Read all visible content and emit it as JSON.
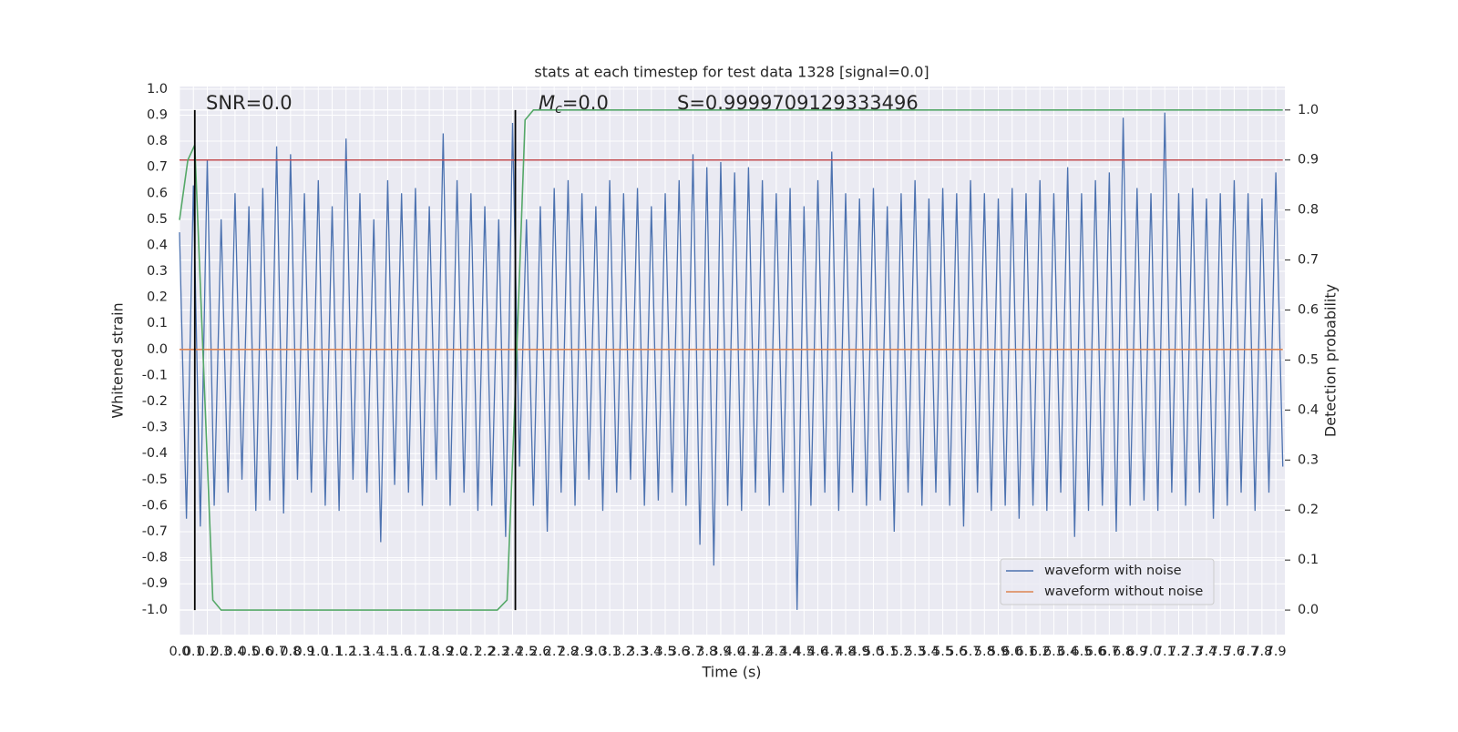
{
  "chart_data": {
    "type": "line",
    "title": "stats at each timestep for test data 1328 [signal=0.0]",
    "xlabel": "Time (s)",
    "ylabel": "Whitened strain",
    "y2label": "Detection probability",
    "xlim": [
      0,
      7.965
    ],
    "ylim": [
      -1.095,
      1.01
    ],
    "y2lim": [
      -0.049,
      1.047
    ],
    "grid": true,
    "legend": "lower right",
    "xticks": [
      {
        "value": 0,
        "label": "0.0"
      },
      0.1,
      0.2,
      0.3,
      0.4,
      0.5,
      0.6,
      0.7,
      0.8,
      0.9,
      {
        "value": 1,
        "label": "1.0"
      },
      1.1,
      1.2,
      1.3,
      1.4,
      1.5,
      1.6,
      1.7,
      1.8,
      1.9,
      {
        "value": 2,
        "label": "2.0"
      },
      2.1,
      2.2,
      2.3,
      2.4,
      2.5,
      2.6,
      2.7,
      2.8,
      2.9,
      {
        "value": 3,
        "label": "3.0"
      },
      3.1,
      3.2,
      3.3,
      3.4,
      3.5,
      3.6,
      3.7,
      3.8,
      3.9,
      {
        "value": 4,
        "label": "4.0"
      },
      4.1,
      4.2,
      4.3,
      4.4,
      4.5,
      4.6,
      4.7,
      4.8,
      4.9,
      {
        "value": 5,
        "label": "5.0"
      },
      5.1,
      5.2,
      5.3,
      5.4,
      5.5,
      5.6,
      5.7,
      5.8,
      5.9,
      {
        "value": 6,
        "label": "6.0"
      },
      6.1,
      6.2,
      6.3,
      6.4,
      6.5,
      6.6,
      6.7,
      6.8,
      6.9,
      {
        "value": 7,
        "label": "7.0"
      },
      7.1,
      7.2,
      7.3,
      7.4,
      7.5,
      7.6,
      7.7,
      7.8,
      7.9
    ],
    "yticks": [
      {
        "value": -1,
        "label": "-1.0"
      },
      -0.9,
      -0.8,
      -0.7,
      -0.6,
      -0.5,
      -0.4,
      -0.3,
      -0.2,
      -0.1,
      {
        "value": 0,
        "label": "0.0"
      },
      0.1,
      0.2,
      0.3,
      0.4,
      0.5,
      0.6,
      0.7,
      0.8,
      0.9,
      {
        "value": 1,
        "label": "1.0"
      }
    ],
    "y2ticks": [
      {
        "value": 0,
        "label": "0.0"
      },
      0.1,
      0.2,
      0.3,
      0.4,
      0.5,
      0.6,
      0.7,
      0.8,
      0.9,
      {
        "value": 1,
        "label": "1.0"
      }
    ],
    "vlines": [
      0.11,
      2.42
    ],
    "vline_color": "#000000",
    "annotations": [
      {
        "text": "SNR=0.0"
      },
      {
        "text": "M",
        "subscript": "c",
        "suffix": "=0.0"
      },
      {
        "text": "S=0.9999709129333496"
      }
    ],
    "series": [
      {
        "name": "waveform with noise",
        "color": "#4c72b0",
        "x": [
          0,
          0.05,
          0.1,
          0.15,
          0.2,
          0.25,
          0.3,
          0.35,
          0.4,
          0.45,
          0.5,
          0.55,
          0.6,
          0.65,
          0.7,
          0.75,
          0.8,
          0.85,
          0.9,
          0.95,
          1,
          1.05,
          1.1,
          1.15,
          1.2,
          1.25,
          1.3,
          1.35,
          1.4,
          1.45,
          1.5,
          1.55,
          1.6,
          1.65,
          1.7,
          1.75,
          1.8,
          1.85,
          1.9,
          1.95,
          2,
          2.05,
          2.1,
          2.15,
          2.2,
          2.25,
          2.3,
          2.35,
          2.4,
          2.45,
          2.5,
          2.55,
          2.6,
          2.65,
          2.7,
          2.75,
          2.8,
          2.85,
          2.9,
          2.95,
          3,
          3.05,
          3.1,
          3.15,
          3.2,
          3.25,
          3.3,
          3.35,
          3.4,
          3.45,
          3.5,
          3.55,
          3.6,
          3.65,
          3.7,
          3.75,
          3.8,
          3.85,
          3.9,
          3.95,
          4,
          4.05,
          4.1,
          4.15,
          4.2,
          4.25,
          4.3,
          4.35,
          4.4,
          4.45,
          4.5,
          4.55,
          4.6,
          4.65,
          4.7,
          4.75,
          4.8,
          4.85,
          4.9,
          4.95,
          5,
          5.05,
          5.1,
          5.15,
          5.2,
          5.25,
          5.3,
          5.35,
          5.4,
          5.45,
          5.5,
          5.55,
          5.6,
          5.65,
          5.7,
          5.75,
          5.8,
          5.85,
          5.9,
          5.95,
          6,
          6.05,
          6.1,
          6.15,
          6.2,
          6.25,
          6.3,
          6.35,
          6.4,
          6.45,
          6.5,
          6.55,
          6.6,
          6.65,
          6.7,
          6.75,
          6.8,
          6.85,
          6.9,
          6.95,
          7,
          7.05,
          7.1,
          7.15,
          7.2,
          7.25,
          7.3,
          7.35,
          7.4,
          7.45,
          7.5,
          7.55,
          7.6,
          7.65,
          7.7,
          7.75,
          7.8,
          7.85,
          7.9,
          7.95
        ],
        "values": [
          0.45,
          -0.65,
          0.63,
          -0.68,
          0.73,
          -0.6,
          0.5,
          -0.55,
          0.6,
          -0.5,
          0.55,
          -0.62,
          0.62,
          -0.58,
          0.78,
          -0.63,
          0.75,
          -0.5,
          0.6,
          -0.55,
          0.65,
          -0.6,
          0.55,
          -0.62,
          0.81,
          -0.5,
          0.6,
          -0.55,
          0.5,
          -0.74,
          0.65,
          -0.52,
          0.6,
          -0.55,
          0.62,
          -0.6,
          0.55,
          -0.5,
          0.83,
          -0.6,
          0.65,
          -0.55,
          0.6,
          -0.62,
          0.55,
          -0.6,
          0.5,
          -0.72,
          0.87,
          -0.45,
          0.5,
          -0.6,
          0.55,
          -0.7,
          0.62,
          -0.55,
          0.65,
          -0.6,
          0.6,
          -0.5,
          0.55,
          -0.62,
          0.65,
          -0.55,
          0.6,
          -0.5,
          0.62,
          -0.6,
          0.55,
          -0.58,
          0.6,
          -0.55,
          0.65,
          -0.6,
          0.75,
          -0.75,
          0.7,
          -0.83,
          0.72,
          -0.6,
          0.68,
          -0.62,
          0.7,
          -0.55,
          0.65,
          -0.6,
          0.6,
          -0.55,
          0.62,
          -1.0,
          0.55,
          -0.6,
          0.65,
          -0.55,
          0.76,
          -0.62,
          0.6,
          -0.55,
          0.58,
          -0.6,
          0.62,
          -0.58,
          0.55,
          -0.7,
          0.6,
          -0.55,
          0.65,
          -0.6,
          0.58,
          -0.55,
          0.62,
          -0.6,
          0.6,
          -0.68,
          0.65,
          -0.55,
          0.6,
          -0.62,
          0.58,
          -0.6,
          0.62,
          -0.65,
          0.6,
          -0.6,
          0.65,
          -0.62,
          0.6,
          -0.55,
          0.7,
          -0.72,
          0.6,
          -0.62,
          0.65,
          -0.6,
          0.68,
          -0.7,
          0.89,
          -0.6,
          0.62,
          -0.58,
          0.6,
          -0.62,
          0.91,
          -0.55,
          0.6,
          -0.6,
          0.62,
          -0.55,
          0.58,
          -0.65,
          0.6,
          -0.6,
          0.65,
          -0.55,
          0.6,
          -0.62,
          0.58,
          -0.55,
          0.68,
          -0.45
        ]
      },
      {
        "name": "waveform without noise",
        "color": "#dd8452",
        "x": [
          0,
          7.95
        ],
        "values": [
          0,
          0
        ]
      },
      {
        "color": "#c44e52",
        "axis": "y2",
        "x": [
          0,
          7.95
        ],
        "values": [
          0.9,
          0.9
        ]
      },
      {
        "color": "#55a868",
        "axis": "y2",
        "x": [
          0,
          0.06,
          0.11,
          0.24,
          0.3,
          2.29,
          2.36,
          2.42,
          2.49,
          2.55,
          7.95
        ],
        "values": [
          0.78,
          0.9,
          0.93,
          0.02,
          0,
          0,
          0.02,
          0.44,
          0.98,
          1,
          1
        ]
      }
    ]
  }
}
